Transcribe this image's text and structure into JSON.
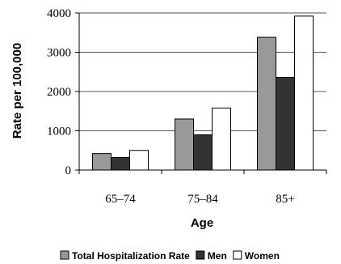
{
  "chart_data": {
    "type": "bar",
    "categories": [
      "65–74",
      "75–84",
      "85+"
    ],
    "series": [
      {
        "name": "Total Hospitalization Rate",
        "values": [
          420,
          1300,
          3380
        ],
        "color": "#999999"
      },
      {
        "name": "Men",
        "values": [
          320,
          900,
          2360
        ],
        "color": "#333333"
      },
      {
        "name": "Women",
        "values": [
          500,
          1580,
          3920
        ],
        "color": "#ffffff"
      }
    ],
    "title": "",
    "xlabel": "Age",
    "ylabel": "Rate per 100,000",
    "ylim": [
      0,
      4000
    ],
    "yticks": [
      0,
      1000,
      2000,
      3000,
      4000
    ],
    "grid": true,
    "legend_position": "bottom"
  }
}
